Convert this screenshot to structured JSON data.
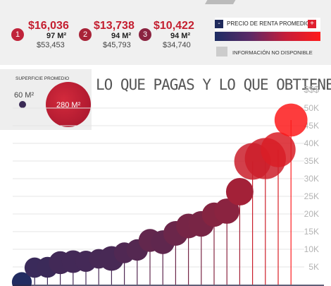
{
  "ranks": [
    {
      "num": "1",
      "price": "$16,036",
      "area": "97 M²",
      "sub": "$53,453",
      "color": "#c0233a"
    },
    {
      "num": "2",
      "price": "$13,738",
      "area": "94 M²",
      "sub": "$45,793",
      "color": "#a82338"
    },
    {
      "num": "3",
      "price": "$10,422",
      "area": "94 M²",
      "sub": "$34,740",
      "color": "#8a2340"
    }
  ],
  "legend": {
    "minus": "-",
    "plus": "+",
    "title": "PRECIO DE RENTA PROMEDIO",
    "na": "INFORMACIÓN NO DISPONIBLE",
    "gradient_colors": [
      "#1d2c63",
      "#ff1a1a"
    ]
  },
  "size_legend": {
    "title": "SUPERFICIE PROMEDIO",
    "small_label": "60 M²",
    "big_label": "280 M²"
  },
  "title": "LO QUE PAGAS Y LO QUE OBTIENES",
  "chart_data": {
    "type": "scatter",
    "title": "LO QUE PAGAS Y LO QUE OBTIENES",
    "y_unit_label": "$$$",
    "yticks": [
      "5K",
      "10K",
      "15K",
      "20K",
      "25K",
      "30K",
      "35K",
      "40K",
      "45K",
      "50K"
    ],
    "ylim": [
      0,
      50000
    ],
    "grid": true,
    "points": [
      {
        "x": 1,
        "rent": 700,
        "area": 62
      },
      {
        "x": 2,
        "rent": 4800,
        "area": 64
      },
      {
        "x": 3,
        "rent": 4900,
        "area": 68
      },
      {
        "x": 4,
        "rent": 6200,
        "area": 82
      },
      {
        "x": 5,
        "rent": 6500,
        "area": 80
      },
      {
        "x": 6,
        "rent": 6600,
        "area": 70
      },
      {
        "x": 7,
        "rent": 7300,
        "area": 60
      },
      {
        "x": 8,
        "rent": 7400,
        "area": 95
      },
      {
        "x": 9,
        "rent": 9000,
        "area": 68
      },
      {
        "x": 10,
        "rent": 9800,
        "area": 72
      },
      {
        "x": 11,
        "rent": 12500,
        "area": 82
      },
      {
        "x": 12,
        "rent": 12000,
        "area": 88
      },
      {
        "x": 13,
        "rent": 14500,
        "area": 95
      },
      {
        "x": 14,
        "rent": 16600,
        "area": 95
      },
      {
        "x": 15,
        "rent": 17200,
        "area": 102
      },
      {
        "x": 16,
        "rent": 19800,
        "area": 92
      },
      {
        "x": 17,
        "rent": 20800,
        "area": 100
      },
      {
        "x": 18,
        "rent": 26300,
        "area": 118
      },
      {
        "x": 19,
        "rent": 34900,
        "area": 210
      },
      {
        "x": 20,
        "rent": 35700,
        "area": 265
      },
      {
        "x": 21,
        "rent": 38200,
        "area": 190
      },
      {
        "x": 22,
        "rent": 46600,
        "area": 170
      }
    ]
  }
}
